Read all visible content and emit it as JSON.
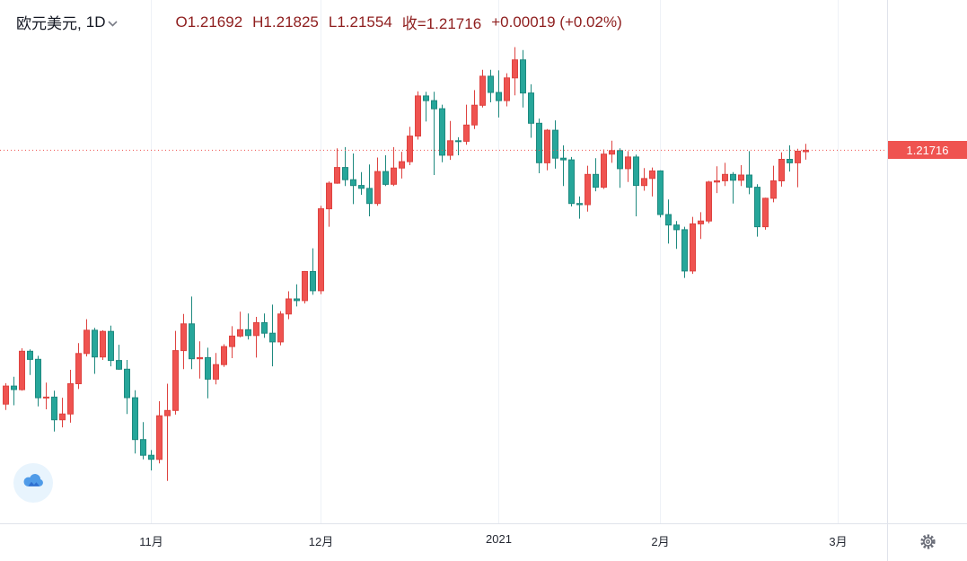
{
  "header": {
    "symbol": "欧元美元,",
    "interval": "1D",
    "ohlc": {
      "open": "O1.21692",
      "high": "H1.21825",
      "low": "L1.21554",
      "close": "收=1.21716",
      "change": "+0.00019 (+0.02%)"
    }
  },
  "price_scale": {
    "label": "1.21716"
  },
  "time_axis": {
    "ticks": [
      {
        "label": "11月",
        "index": 18
      },
      {
        "label": "12月",
        "index": 39
      },
      {
        "label": "2021",
        "index": 61
      },
      {
        "label": "2月",
        "index": 81
      },
      {
        "label": "3月",
        "index": 103
      }
    ]
  },
  "colors": {
    "up": "#ef5350",
    "up_border": "#de4340",
    "down": "#26a69a",
    "down_border": "#1e897f",
    "legend_text": "#8e1d1d",
    "grid": "#eef1f7",
    "price_line": "#ef5350",
    "label_bg": "#ef5350",
    "axis_text": "#242832"
  },
  "chart_data": {
    "type": "candlestick",
    "title": "欧元美元 1D",
    "ylim": [
      1.153,
      1.243
    ],
    "current_price": 1.21716,
    "x_tick_labels": [
      "11月",
      "12月",
      "2021",
      "2月",
      "3月"
    ],
    "columns": [
      "date",
      "open",
      "high",
      "low",
      "close"
    ],
    "candles": [
      [
        "2020-10-07",
        1.1735,
        1.1771,
        1.1725,
        1.1766
      ],
      [
        "2020-10-08",
        1.1766,
        1.1782,
        1.1733,
        1.176
      ],
      [
        "2020-10-09",
        1.176,
        1.1831,
        1.1758,
        1.1826
      ],
      [
        "2020-10-12",
        1.1826,
        1.1829,
        1.1785,
        1.1812
      ],
      [
        "2020-10-13",
        1.1812,
        1.1818,
        1.1731,
        1.1746
      ],
      [
        "2020-10-14",
        1.1746,
        1.1772,
        1.1726,
        1.1747
      ],
      [
        "2020-10-15",
        1.1747,
        1.1758,
        1.1688,
        1.1708
      ],
      [
        "2020-10-16",
        1.1708,
        1.1746,
        1.1695,
        1.1718
      ],
      [
        "2020-10-19",
        1.1718,
        1.1794,
        1.1703,
        1.177
      ],
      [
        "2020-10-20",
        1.177,
        1.184,
        1.1761,
        1.1822
      ],
      [
        "2020-10-21",
        1.1822,
        1.1881,
        1.1817,
        1.1862
      ],
      [
        "2020-10-22",
        1.1862,
        1.1866,
        1.1787,
        1.1816
      ],
      [
        "2020-10-23",
        1.1816,
        1.1862,
        1.1811,
        1.186
      ],
      [
        "2020-10-26",
        1.186,
        1.187,
        1.18,
        1.181
      ],
      [
        "2020-10-27",
        1.181,
        1.1837,
        1.1794,
        1.1795
      ],
      [
        "2020-10-28",
        1.1795,
        1.1811,
        1.1718,
        1.1746
      ],
      [
        "2020-10-29",
        1.1746,
        1.1759,
        1.165,
        1.1674
      ],
      [
        "2020-10-30",
        1.1674,
        1.1704,
        1.164,
        1.1647
      ],
      [
        "2020-11-02",
        1.1647,
        1.1656,
        1.1621,
        1.164
      ],
      [
        "2020-11-03",
        1.164,
        1.174,
        1.1633,
        1.1715
      ],
      [
        "2020-11-04",
        1.1715,
        1.177,
        1.1603,
        1.1724
      ],
      [
        "2020-11-05",
        1.1724,
        1.1861,
        1.1717,
        1.1827
      ],
      [
        "2020-11-06",
        1.1827,
        1.189,
        1.1795,
        1.1873
      ],
      [
        "2020-11-09",
        1.1873,
        1.192,
        1.1795,
        1.1813
      ],
      [
        "2020-11-10",
        1.1813,
        1.1843,
        1.1779,
        1.1815
      ],
      [
        "2020-11-11",
        1.1815,
        1.1832,
        1.1745,
        1.1778
      ],
      [
        "2020-11-12",
        1.1778,
        1.1823,
        1.1769,
        1.1803
      ],
      [
        "2020-11-13",
        1.1803,
        1.1838,
        1.1799,
        1.1834
      ],
      [
        "2020-11-16",
        1.1834,
        1.1869,
        1.1814,
        1.1852
      ],
      [
        "2020-11-17",
        1.1852,
        1.1894,
        1.185,
        1.1863
      ],
      [
        "2020-11-18",
        1.1863,
        1.1891,
        1.1846,
        1.1853
      ],
      [
        "2020-11-19",
        1.1853,
        1.1885,
        1.1815,
        1.1875
      ],
      [
        "2020-11-20",
        1.1875,
        1.1891,
        1.1849,
        1.1857
      ],
      [
        "2020-11-23",
        1.1857,
        1.1906,
        1.18,
        1.1842
      ],
      [
        "2020-11-24",
        1.1842,
        1.1895,
        1.1836,
        1.189
      ],
      [
        "2020-11-25",
        1.189,
        1.1929,
        1.1881,
        1.1916
      ],
      [
        "2020-11-26",
        1.1916,
        1.1941,
        1.1903,
        1.1913
      ],
      [
        "2020-11-27",
        1.1913,
        1.1964,
        1.1908,
        1.1963
      ],
      [
        "2020-11-30",
        1.1963,
        1.2003,
        1.1923,
        1.193
      ],
      [
        "2020-12-01",
        1.193,
        1.2076,
        1.1924,
        1.2071
      ],
      [
        "2020-12-02",
        1.2071,
        1.2118,
        1.204,
        1.2115
      ],
      [
        "2020-12-03",
        1.2115,
        1.2175,
        1.2114,
        1.2142
      ],
      [
        "2020-12-04",
        1.2142,
        1.2177,
        1.211,
        1.2121
      ],
      [
        "2020-12-07",
        1.2121,
        1.2166,
        1.2079,
        1.2111
      ],
      [
        "2020-12-08",
        1.2111,
        1.2134,
        1.2095,
        1.2106
      ],
      [
        "2020-12-09",
        1.2106,
        1.2147,
        1.2058,
        1.208
      ],
      [
        "2020-12-10",
        1.208,
        1.2159,
        1.2076,
        1.2135
      ],
      [
        "2020-12-11",
        1.2135,
        1.2163,
        1.211,
        1.2113
      ],
      [
        "2020-12-14",
        1.2113,
        1.2177,
        1.211,
        1.2141
      ],
      [
        "2020-12-15",
        1.2141,
        1.2169,
        1.2123,
        1.2152
      ],
      [
        "2020-12-16",
        1.2152,
        1.2212,
        1.2146,
        1.2196
      ],
      [
        "2020-12-17",
        1.2196,
        1.2273,
        1.219,
        1.2265
      ],
      [
        "2020-12-18",
        1.2265,
        1.2272,
        1.2221,
        1.2257
      ],
      [
        "2020-12-21",
        1.2257,
        1.2272,
        1.2129,
        1.2243
      ],
      [
        "2020-12-22",
        1.2243,
        1.225,
        1.2151,
        1.2163
      ],
      [
        "2020-12-23",
        1.2163,
        1.2222,
        1.2155,
        1.2188
      ],
      [
        "2020-12-24",
        1.2188,
        1.2194,
        1.2163,
        1.2187
      ],
      [
        "2020-12-28",
        1.2187,
        1.225,
        1.2181,
        1.2215
      ],
      [
        "2020-12-29",
        1.2215,
        1.2275,
        1.2208,
        1.2249
      ],
      [
        "2020-12-30",
        1.2249,
        1.231,
        1.2245,
        1.2299
      ],
      [
        "2020-12-31",
        1.2299,
        1.231,
        1.2254,
        1.2271
      ],
      [
        "2021-01-04",
        1.2271,
        1.2309,
        1.2228,
        1.2257
      ],
      [
        "2021-01-05",
        1.2257,
        1.2304,
        1.2247,
        1.2296
      ],
      [
        "2021-01-06",
        1.2296,
        1.2349,
        1.2266,
        1.2327
      ],
      [
        "2021-01-07",
        1.2327,
        1.2344,
        1.2245,
        1.227
      ],
      [
        "2021-01-08",
        1.227,
        1.2285,
        1.2193,
        1.2218
      ],
      [
        "2021-01-11",
        1.2218,
        1.2226,
        1.2132,
        1.215
      ],
      [
        "2021-01-12",
        1.215,
        1.2208,
        1.2137,
        1.2206
      ],
      [
        "2021-01-13",
        1.2206,
        1.2223,
        1.214,
        1.2158
      ],
      [
        "2021-01-14",
        1.2158,
        1.218,
        1.211,
        1.2155
      ],
      [
        "2021-01-15",
        1.2155,
        1.216,
        1.2075,
        1.208
      ],
      [
        "2021-01-18",
        1.208,
        1.2092,
        1.2054,
        1.2078
      ],
      [
        "2021-01-19",
        1.2078,
        1.2145,
        1.2066,
        1.213
      ],
      [
        "2021-01-20",
        1.213,
        1.2158,
        1.2101,
        1.2108
      ],
      [
        "2021-01-21",
        1.2108,
        1.2173,
        1.2105,
        1.2165
      ],
      [
        "2021-01-22",
        1.2165,
        1.2188,
        1.215,
        1.2171
      ],
      [
        "2021-01-25",
        1.2171,
        1.2175,
        1.2107,
        1.214
      ],
      [
        "2021-01-26",
        1.214,
        1.217,
        1.2117,
        1.216
      ],
      [
        "2021-01-27",
        1.216,
        1.2164,
        1.2058,
        1.2111
      ],
      [
        "2021-01-28",
        1.2111,
        1.2141,
        1.2102,
        1.2123
      ],
      [
        "2021-01-29",
        1.2123,
        1.2142,
        1.2092,
        1.2136
      ],
      [
        "2021-02-01",
        1.2136,
        1.2137,
        1.2056,
        1.2061
      ],
      [
        "2021-02-02",
        1.2061,
        1.2087,
        1.2011,
        1.2043
      ],
      [
        "2021-02-03",
        1.2043,
        1.205,
        1.2002,
        1.2035
      ],
      [
        "2021-02-04",
        1.2035,
        1.204,
        1.1952,
        1.1964
      ],
      [
        "2021-02-05",
        1.1964,
        1.2057,
        1.1959,
        1.2045
      ],
      [
        "2021-02-08",
        1.2045,
        1.2065,
        1.2019,
        1.205
      ],
      [
        "2021-02-09",
        1.205,
        1.2119,
        1.2046,
        1.2117
      ],
      [
        "2021-02-10",
        1.2117,
        1.2144,
        1.2098,
        1.2119
      ],
      [
        "2021-02-11",
        1.2119,
        1.215,
        1.211,
        1.213
      ],
      [
        "2021-02-12",
        1.213,
        1.2134,
        1.208,
        1.212
      ],
      [
        "2021-02-15",
        1.212,
        1.2146,
        1.211,
        1.2129
      ],
      [
        "2021-02-16",
        1.2129,
        1.217,
        1.2096,
        1.2108
      ],
      [
        "2021-02-17",
        1.2108,
        1.2113,
        1.2023,
        1.204
      ],
      [
        "2021-02-18",
        1.204,
        1.209,
        1.2035,
        1.2089
      ],
      [
        "2021-02-19",
        1.2089,
        1.2145,
        1.2082,
        1.2119
      ],
      [
        "2021-02-22",
        1.2119,
        1.2168,
        1.2109,
        1.2156
      ],
      [
        "2021-02-23",
        1.2156,
        1.218,
        1.2135,
        1.215
      ],
      [
        "2021-02-24",
        1.215,
        1.2174,
        1.2108,
        1.217
      ],
      [
        "2021-02-25",
        1.21692,
        1.21825,
        1.21554,
        1.21716
      ]
    ]
  }
}
